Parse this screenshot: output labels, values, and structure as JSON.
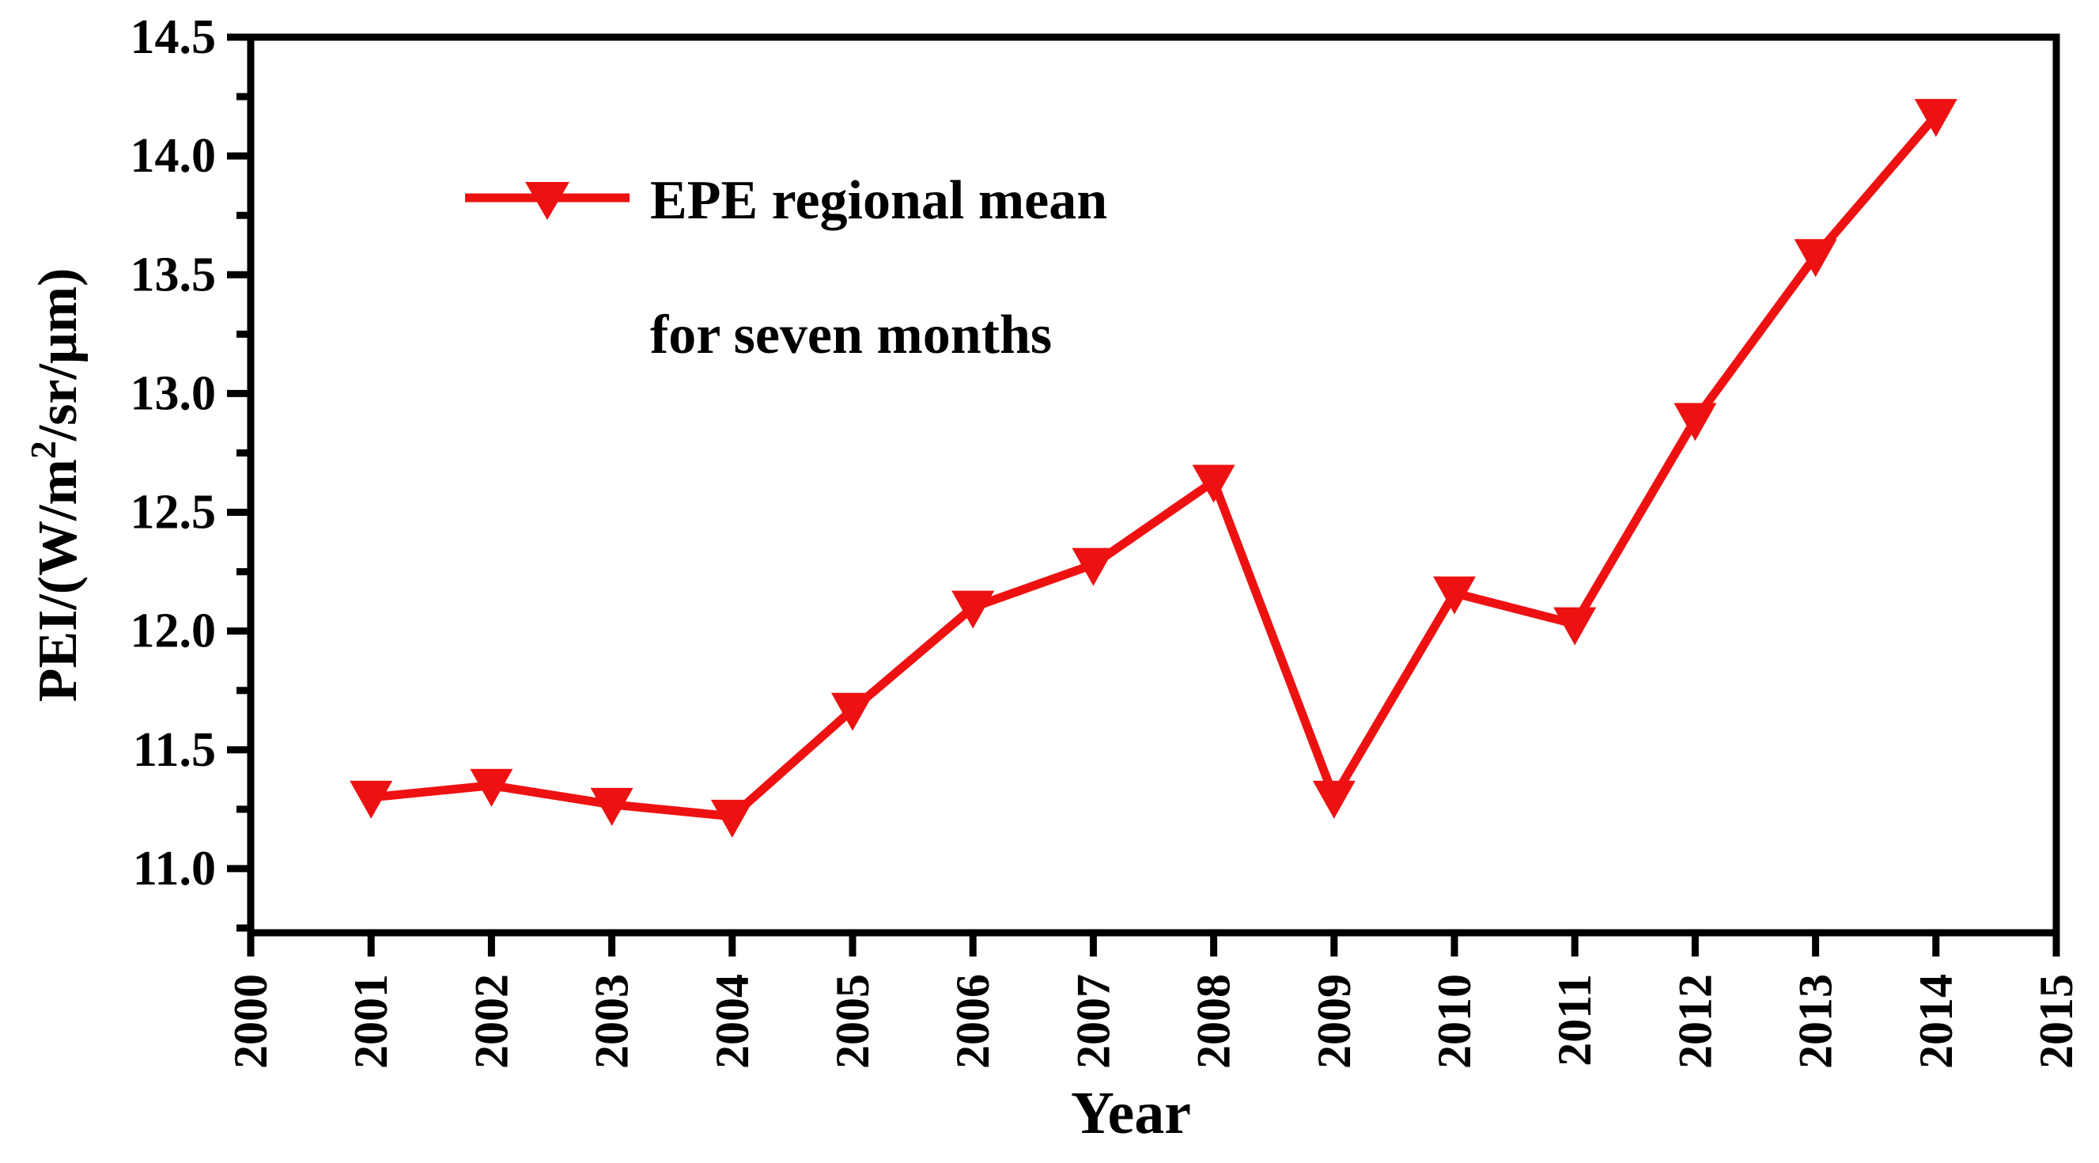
{
  "page": {
    "background": "#ffffff"
  },
  "chart_data": {
    "type": "line",
    "title": "",
    "xlabel": "Year",
    "ylabel": "PEI/(W/m2/sr/μm)",
    "ylabel_parts": {
      "prefix": "PEI/(W/m",
      "sup": "2",
      "suffix": "/sr/μm)"
    },
    "legend": {
      "line1": "EPE regional mean",
      "line2": "for seven months",
      "marker": "triangle-down-icon",
      "position": "inside-top-left"
    },
    "series": [
      {
        "name": "EPE regional mean for seven months",
        "color": "#ee1111",
        "marker": "triangle-down",
        "x": [
          2001,
          2002,
          2003,
          2004,
          2005,
          2006,
          2007,
          2008,
          2009,
          2010,
          2011,
          2012,
          2013,
          2014
        ],
        "values": [
          11.3,
          11.35,
          11.27,
          11.22,
          11.67,
          12.1,
          12.28,
          12.63,
          11.3,
          12.16,
          12.03,
          12.89,
          13.58,
          14.17
        ]
      }
    ],
    "xlim": [
      2000,
      2015
    ],
    "ylim": [
      10.73,
      14.5
    ],
    "x_major_ticks": [
      2000,
      2001,
      2002,
      2003,
      2004,
      2005,
      2006,
      2007,
      2008,
      2009,
      2010,
      2011,
      2012,
      2013,
      2014,
      2015
    ],
    "x_tick_labels": [
      "2000",
      "2001",
      "2002",
      "2003",
      "2004",
      "2005",
      "2006",
      "2007",
      "2008",
      "2009",
      "2010",
      "2011",
      "2012",
      "2013",
      "2014",
      "2015"
    ],
    "y_major_ticks": [
      11.0,
      11.5,
      12.0,
      12.5,
      13.0,
      13.5,
      14.0,
      14.5
    ],
    "y_tick_labels": [
      "11.0",
      "11.5",
      "12.0",
      "12.5",
      "13.0",
      "13.5",
      "14.0",
      "14.5"
    ],
    "y_minor_step": 0.25,
    "grid": false,
    "axis_color": "#000000"
  }
}
